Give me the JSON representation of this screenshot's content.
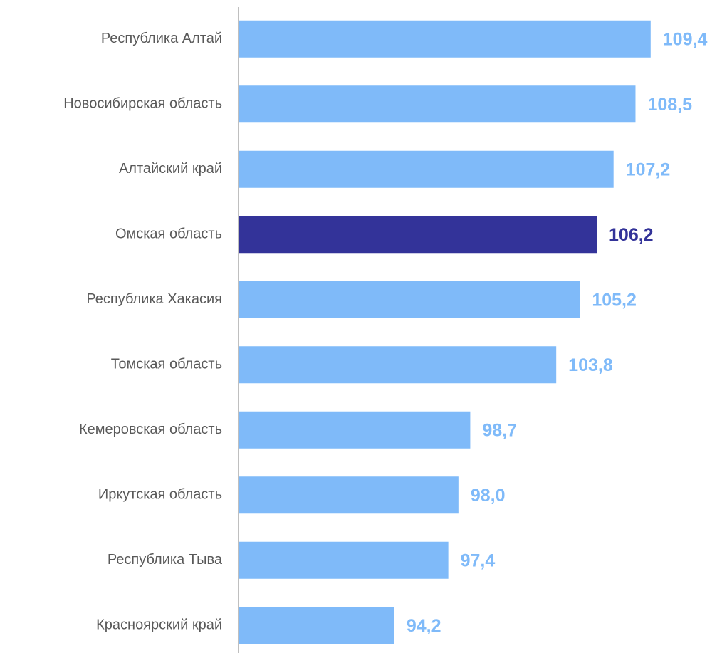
{
  "chart_data": {
    "type": "barh",
    "categories": [
      "Республика Алтай",
      "Новосибирская область",
      "Алтайский край",
      "Омская область",
      "Республика Хакасия",
      "Томская область",
      "Кемеровская область",
      "Иркутская область",
      "Республика Тыва",
      "Красноярский край"
    ],
    "values": [
      109.4,
      108.5,
      107.2,
      106.2,
      105.2,
      103.8,
      98.7,
      98.0,
      97.4,
      94.2
    ],
    "value_labels": [
      "109,4",
      "108,5",
      "107,2",
      "106,2",
      "105,2",
      "103,8",
      "98,7",
      "98,0",
      "97,4",
      "94,2"
    ],
    "colors": [
      "#7fbaf9",
      "#7fbaf9",
      "#7fbaf9",
      "#333399",
      "#7fbaf9",
      "#7fbaf9",
      "#7fbaf9",
      "#7fbaf9",
      "#7fbaf9",
      "#7fbaf9"
    ],
    "xlim": [
      85,
      110
    ]
  }
}
